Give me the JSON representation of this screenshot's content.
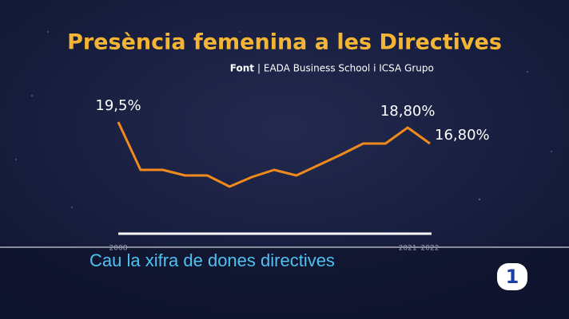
{
  "chart_data": {
    "type": "line",
    "title": "Presència femenina a les Directives",
    "subtitle_label": "Font",
    "subtitle": "| EADA Business School i ICSA Grupo",
    "categories": [
      "2008",
      null,
      null,
      null,
      null,
      null,
      null,
      null,
      null,
      null,
      null,
      null,
      null,
      "2021",
      "2022"
    ],
    "series": [
      {
        "name": null,
        "color": "#f08a1c",
        "values": [
          19.5,
          13.5,
          13.5,
          12.8,
          12.8,
          11.4,
          12.6,
          13.5,
          12.8,
          14.1,
          15.4,
          16.8,
          16.8,
          18.8,
          16.8
        ],
        "value_labels": [
          "19,5%",
          null,
          null,
          null,
          null,
          null,
          null,
          null,
          null,
          null,
          null,
          null,
          null,
          "18,80%",
          "16,80%"
        ]
      }
    ],
    "ylim": [
      6,
      20
    ]
  },
  "ticker": {
    "headline": "Cau la xifra de dones directives",
    "logo": "1"
  }
}
